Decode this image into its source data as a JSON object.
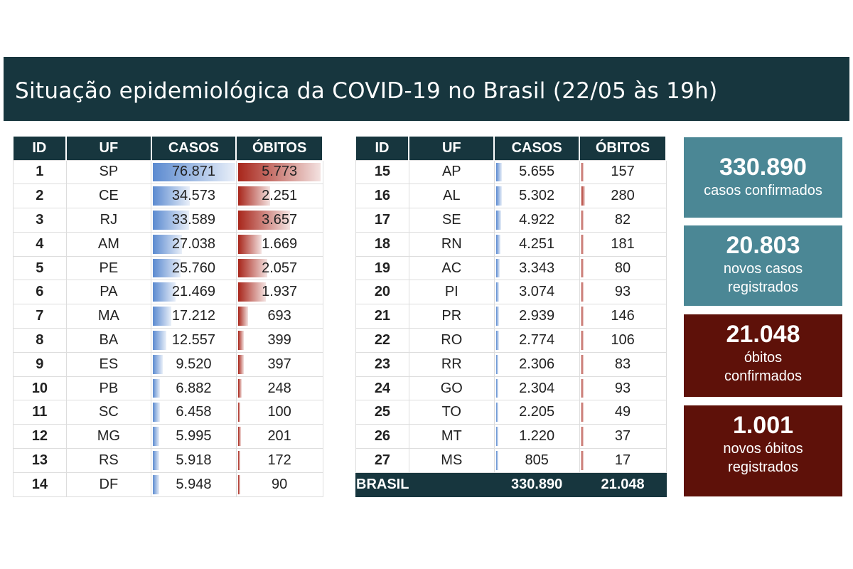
{
  "title": "Situação epidemiológica da COVID-19 no Brasil (22/05 às 19h)",
  "colors": {
    "header": "#17363e",
    "casos_bar": "#5b8ad0",
    "obitos_bar": "#a8261b",
    "teal": "#4b8795",
    "dark_red": "#5e1109"
  },
  "chart_data": {
    "type": "table",
    "columns": [
      "ID",
      "UF",
      "CASOS",
      "ÓBITOS"
    ],
    "rows": [
      [
        "1",
        "SP",
        "76.871",
        "5.773"
      ],
      [
        "2",
        "CE",
        "34.573",
        "2.251"
      ],
      [
        "3",
        "RJ",
        "33.589",
        "3.657"
      ],
      [
        "4",
        "AM",
        "27.038",
        "1.669"
      ],
      [
        "5",
        "PE",
        "25.760",
        "2.057"
      ],
      [
        "6",
        "PA",
        "21.469",
        "1.937"
      ],
      [
        "7",
        "MA",
        "17.212",
        "693"
      ],
      [
        "8",
        "BA",
        "12.557",
        "399"
      ],
      [
        "9",
        "ES",
        "9.520",
        "397"
      ],
      [
        "10",
        "PB",
        "6.882",
        "248"
      ],
      [
        "11",
        "SC",
        "6.458",
        "100"
      ],
      [
        "12",
        "MG",
        "5.995",
        "201"
      ],
      [
        "13",
        "RS",
        "5.918",
        "172"
      ],
      [
        "14",
        "DF",
        "5.948",
        "90"
      ],
      [
        "15",
        "AP",
        "5.655",
        "157"
      ],
      [
        "16",
        "AL",
        "5.302",
        "280"
      ],
      [
        "17",
        "SE",
        "4.922",
        "82"
      ],
      [
        "18",
        "RN",
        "4.251",
        "181"
      ],
      [
        "19",
        "AC",
        "3.343",
        "80"
      ],
      [
        "20",
        "PI",
        "3.074",
        "93"
      ],
      [
        "21",
        "PR",
        "2.939",
        "146"
      ],
      [
        "22",
        "RO",
        "2.774",
        "106"
      ],
      [
        "23",
        "RR",
        "2.306",
        "83"
      ],
      [
        "24",
        "GO",
        "2.304",
        "93"
      ],
      [
        "25",
        "TO",
        "2.205",
        "49"
      ],
      [
        "26",
        "MT",
        "1.220",
        "37"
      ],
      [
        "27",
        "MS",
        "805",
        "17"
      ]
    ],
    "total": {
      "label": "BRASIL",
      "casos": "330.890",
      "obitos": "21.048"
    }
  },
  "summary": [
    {
      "value": "330.890",
      "lines": [
        "casos confirmados"
      ],
      "style": "teal"
    },
    {
      "value": "20.803",
      "lines": [
        "novos casos",
        "registrados"
      ],
      "style": "teal"
    },
    {
      "value": "21.048",
      "lines": [
        "óbitos",
        "confirmados"
      ],
      "style": "red"
    },
    {
      "value": "1.001",
      "lines": [
        "novos óbitos",
        "registrados"
      ],
      "style": "red"
    }
  ]
}
